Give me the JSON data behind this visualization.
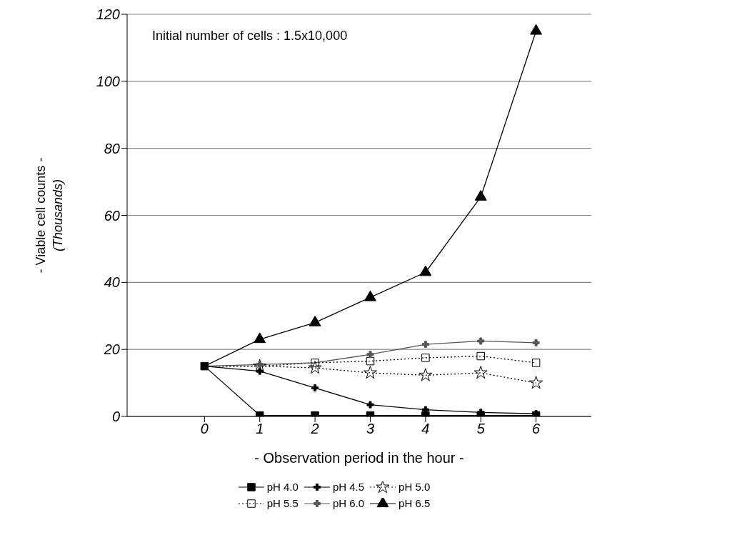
{
  "chart_data": {
    "type": "line",
    "xlabel": "-  Observation period in the hour  -",
    "ylabel": "- Viable cell counts -\n(Thousands)",
    "annotations": [
      "Initial number of cells : 1.5x10,000"
    ],
    "x": [
      0,
      1,
      2,
      3,
      4,
      5,
      6
    ],
    "series": [
      {
        "name": "pH 4.0",
        "color": "#000000",
        "marker": "square",
        "line_style": "solid",
        "values": [
          15,
          0.3,
          0.3,
          0.3,
          0.3,
          0.3,
          0.3
        ]
      },
      {
        "name": "pH 4.5",
        "color": "#000000",
        "marker": "cross",
        "line_style": "solid",
        "values": [
          15,
          13.5,
          8.5,
          3.5,
          2,
          1.2,
          0.8
        ]
      },
      {
        "name": "pH 5.0",
        "color": "#000000",
        "marker": "star",
        "line_style": "dotted",
        "values": [
          15,
          15,
          14.5,
          13,
          12.3,
          13,
          10
        ]
      },
      {
        "name": "pH 5.5",
        "color": "#000000",
        "marker": "square",
        "line_style": "dotted",
        "values": [
          15,
          15,
          16,
          16.5,
          17.5,
          18,
          16
        ]
      },
      {
        "name": "pH 6.0",
        "color": "#555555",
        "marker": "cross",
        "line_style": "solid",
        "values": [
          15,
          15.5,
          16,
          18.5,
          21.5,
          22.5,
          22
        ]
      },
      {
        "name": "pH 6.5",
        "color": "#000000",
        "marker": "triangle",
        "line_style": "solid",
        "values": [
          15,
          23,
          28,
          35.5,
          43,
          65.5,
          115
        ]
      }
    ],
    "xlim": [
      -1.4,
      7
    ],
    "xticks": [
      0,
      1,
      2,
      3,
      4,
      5,
      6
    ],
    "ylim": [
      0,
      120
    ],
    "yticks": [
      0,
      20,
      40,
      60,
      80,
      100,
      120
    ],
    "grid": "y",
    "legend": "bottom"
  }
}
